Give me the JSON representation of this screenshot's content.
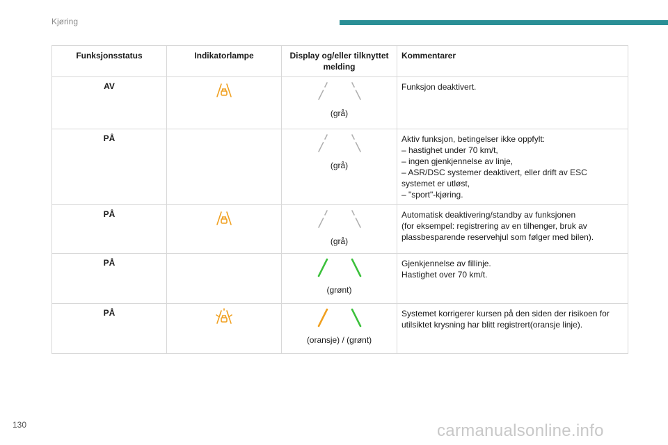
{
  "header": {
    "section_title": "Kjøring",
    "accent_color": "#2a8f96"
  },
  "table": {
    "columns": [
      "Funksjonsstatus",
      "Indikatorlampe",
      "Display og/eller tilknyttet melding",
      "Kommentarer"
    ],
    "rows": [
      {
        "status": "AV",
        "lamp": "lane-assist-lamp-orange",
        "display_label": "(grå)",
        "display_colors": [
          "#b0b0b0",
          "#b0b0b0"
        ],
        "comment": [
          " Funksjon deaktivert."
        ]
      },
      {
        "status": "PÅ",
        "lamp": "none",
        "display_label": "(grå)",
        "display_colors": [
          "#b0b0b0",
          "#b0b0b0"
        ],
        "comment": [
          "Aktiv funksjon, betingelser ikke oppfylt:",
          "–  hastighet under 70 km/t,",
          "–  ingen gjenkjennelse av linje,",
          "–  ASR/DSC systemer deaktivert, eller drift av ESC",
          "systemet er utløst,",
          "–  \"sport\"-kjøring."
        ]
      },
      {
        "status": "PÅ",
        "lamp": "lane-assist-lamp-orange",
        "display_label": "(grå)",
        "display_colors": [
          "#b0b0b0",
          "#b0b0b0"
        ],
        "comment": [
          "Automatisk deaktivering/standby av funksjonen",
          "(for eksempel: registrering av en tilhenger, bruk av",
          "plassbesparende reservehjul som følger med bilen)."
        ]
      },
      {
        "status": "PÅ",
        "lamp": "none",
        "display_label": "(grønt)",
        "display_colors": [
          "#3cc13c",
          "#3cc13c"
        ],
        "comment": [
          "Gjenkjennelse av fillinje.",
          "Hastighet over 70 km/t."
        ]
      },
      {
        "status": "PÅ",
        "lamp": "lane-assist-lamp-orange-active",
        "display_label": "(oransje) / (grønt)",
        "display_colors": [
          "#f0a020",
          "#3cc13c"
        ],
        "comment": [
          "Systemet korrigerer kursen på den siden der risikoen for",
          "utilsiktet krysning har blitt registrert(oransje linje)."
        ]
      }
    ]
  },
  "footer": {
    "page_number": "130"
  },
  "watermark": {
    "text": "carmanualsonline.info"
  },
  "colors": {
    "lamp_orange": "#f0a020",
    "grid": "#d8d8d8"
  }
}
